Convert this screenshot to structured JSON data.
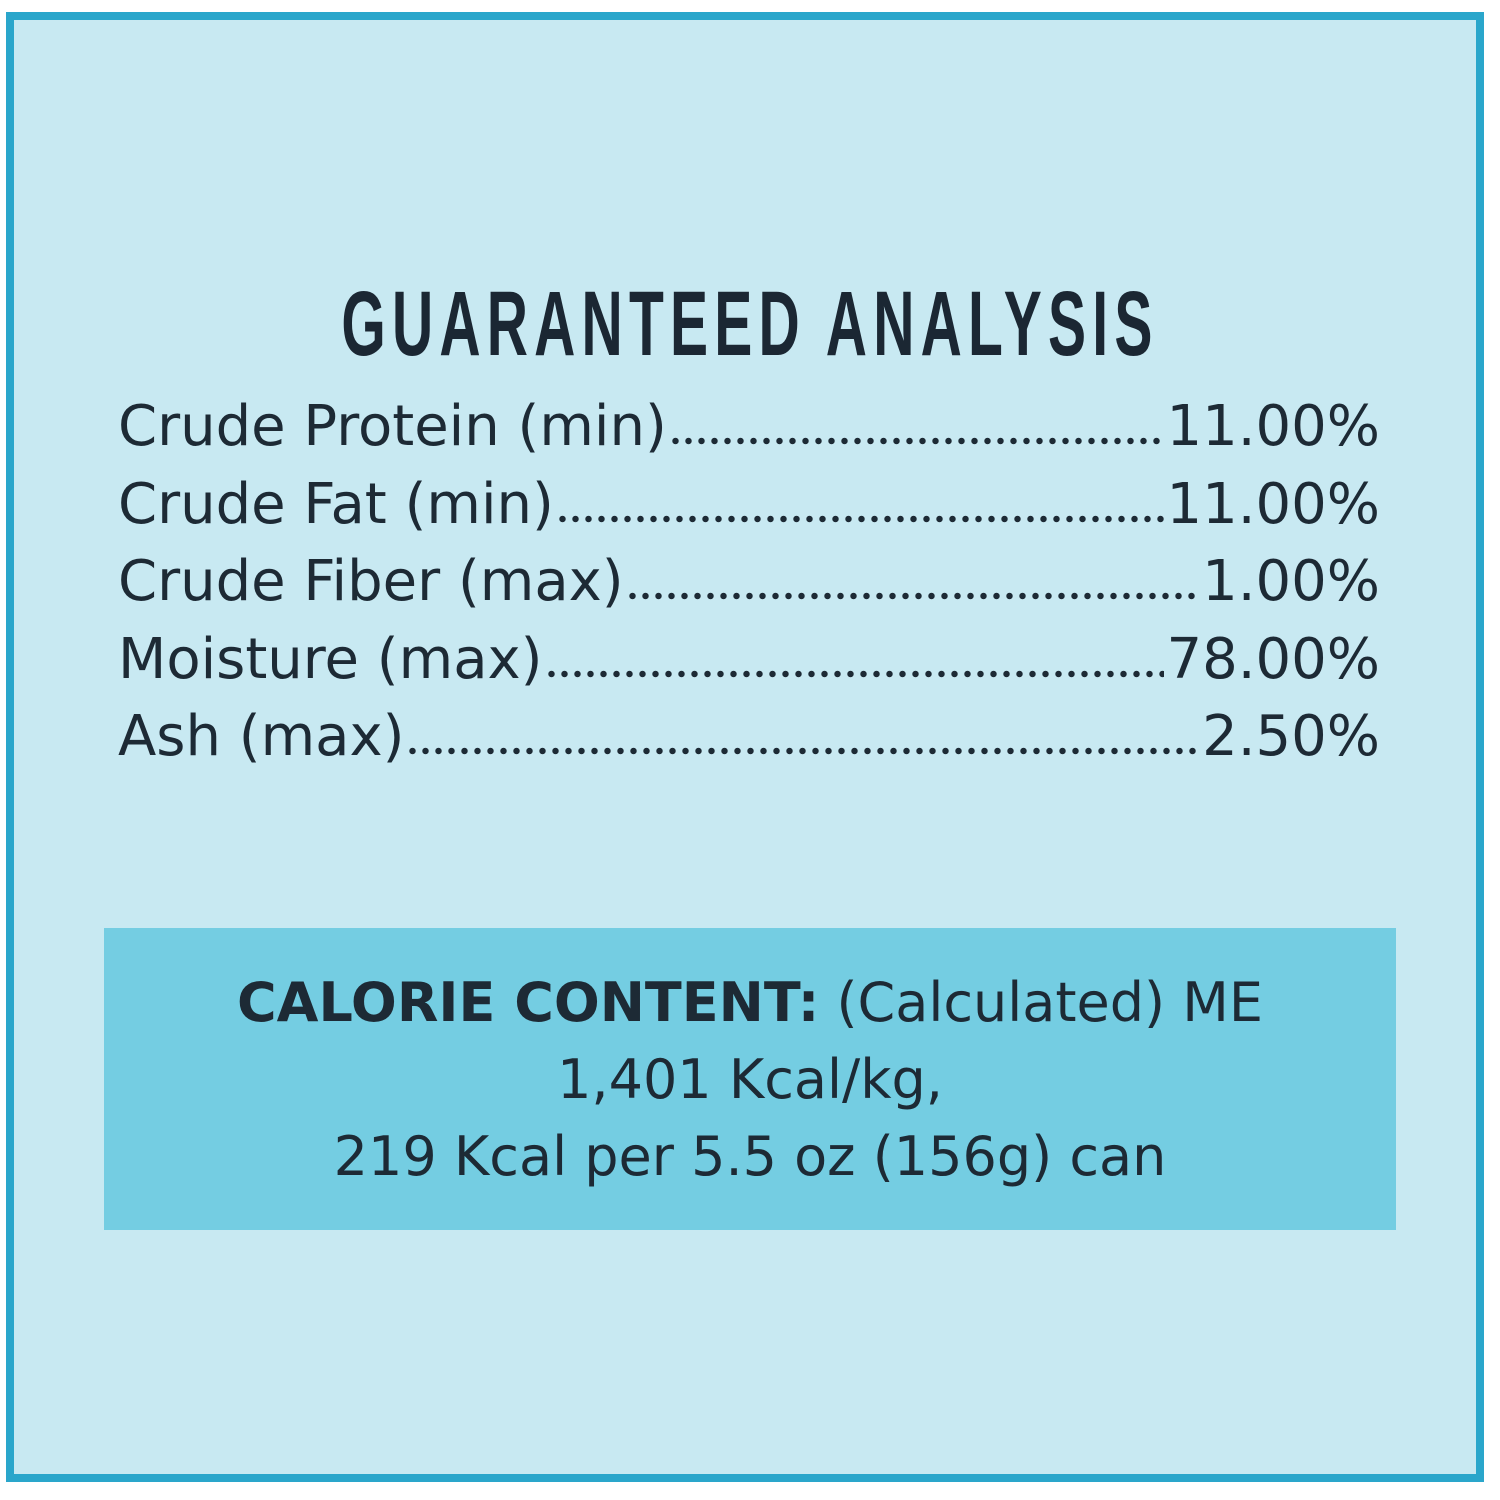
{
  "title": "GUARANTEED ANALYSIS",
  "analysis": [
    {
      "label": "Crude Protein (min)",
      "value": "11.00%"
    },
    {
      "label": "Crude Fat (min)",
      "value": "11.00%"
    },
    {
      "label": "Crude Fiber (max)",
      "value": "1.00%"
    },
    {
      "label": "Moisture (max)",
      "value": "78.00%"
    },
    {
      "label": "Ash (max)",
      "value": "2.50%"
    }
  ],
  "calorie": {
    "heading": "CALORIE CONTENT:",
    "method": "(Calculated) ME",
    "lines": [
      "1,401 Kcal/kg,",
      "219 Kcal per 5.5 oz (156g) can"
    ]
  }
}
